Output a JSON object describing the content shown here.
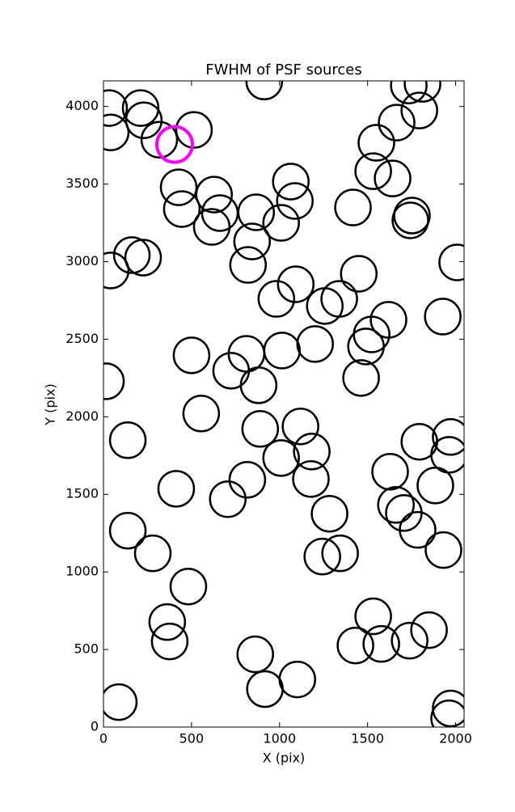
{
  "chart_data": {
    "type": "scatter",
    "title": "FWHM of PSF sources",
    "x_label": "X (pix)",
    "y_label": "Y (pix)",
    "xlim": [
      0,
      2048
    ],
    "ylim": [
      0,
      4165
    ],
    "xticks": [
      0,
      500,
      1000,
      1500,
      2000
    ],
    "yticks": [
      0,
      500,
      1000,
      1500,
      2000,
      2500,
      3000,
      3500,
      4000
    ],
    "grid": false,
    "series": [
      {
        "color": "#000000",
        "x": [
          32,
          41,
          211,
          229,
          317,
          514,
          913,
          1734,
          1812,
          1794,
          1665,
          1550,
          1532,
          1642,
          1064,
          1087,
          1417,
          1752,
          1743,
          427,
          445,
          628,
          661,
          615,
          867,
          844,
          1009,
          821,
          161,
          225,
          41,
          2009,
          1450,
          1092,
          982,
          1257,
          1339,
          1619,
          1927,
          1523,
          1491,
          1463,
          1202,
          1014,
          812,
          500,
          725,
          881,
          14,
          555,
          890,
          1119,
          1183,
          1178,
          1009,
          817,
          138,
          413,
          706,
          1284,
          1628,
          1661,
          1706,
          1784,
          1794,
          1972,
          1963,
          1885,
          1931,
          138,
          280,
          1243,
          1344,
          482,
          362,
          376,
          1532,
          1578,
          1431,
          1739,
          1849,
          862,
          917,
          1101,
          87,
          1972,
          1963
        ],
        "y": [
          3990,
          3833,
          3990,
          3911,
          3786,
          3849,
          4161,
          4135,
          4146,
          3974,
          3896,
          3766,
          3583,
          3536,
          3516,
          3391,
          3349,
          3297,
          3266,
          3479,
          3339,
          3432,
          3313,
          3224,
          3318,
          3130,
          3250,
          2979,
          3042,
          3026,
          2943,
          2995,
          2922,
          2854,
          2760,
          2714,
          2760,
          2625,
          2646,
          2531,
          2453,
          2250,
          2469,
          2427,
          2406,
          2396,
          2297,
          2203,
          2229,
          2021,
          1922,
          1938,
          1776,
          1599,
          1734,
          1594,
          1849,
          1536,
          1469,
          1375,
          1646,
          1432,
          1380,
          1271,
          1839,
          1870,
          1755,
          1557,
          1141,
          1266,
          1120,
          1099,
          1120,
          906,
          677,
          552,
          714,
          536,
          526,
          557,
          625,
          469,
          245,
          307,
          161,
          120,
          57
        ]
      },
      {
        "color": "#ff00ff",
        "x": [
          404
        ],
        "y": [
          3755
        ]
      }
    ]
  }
}
